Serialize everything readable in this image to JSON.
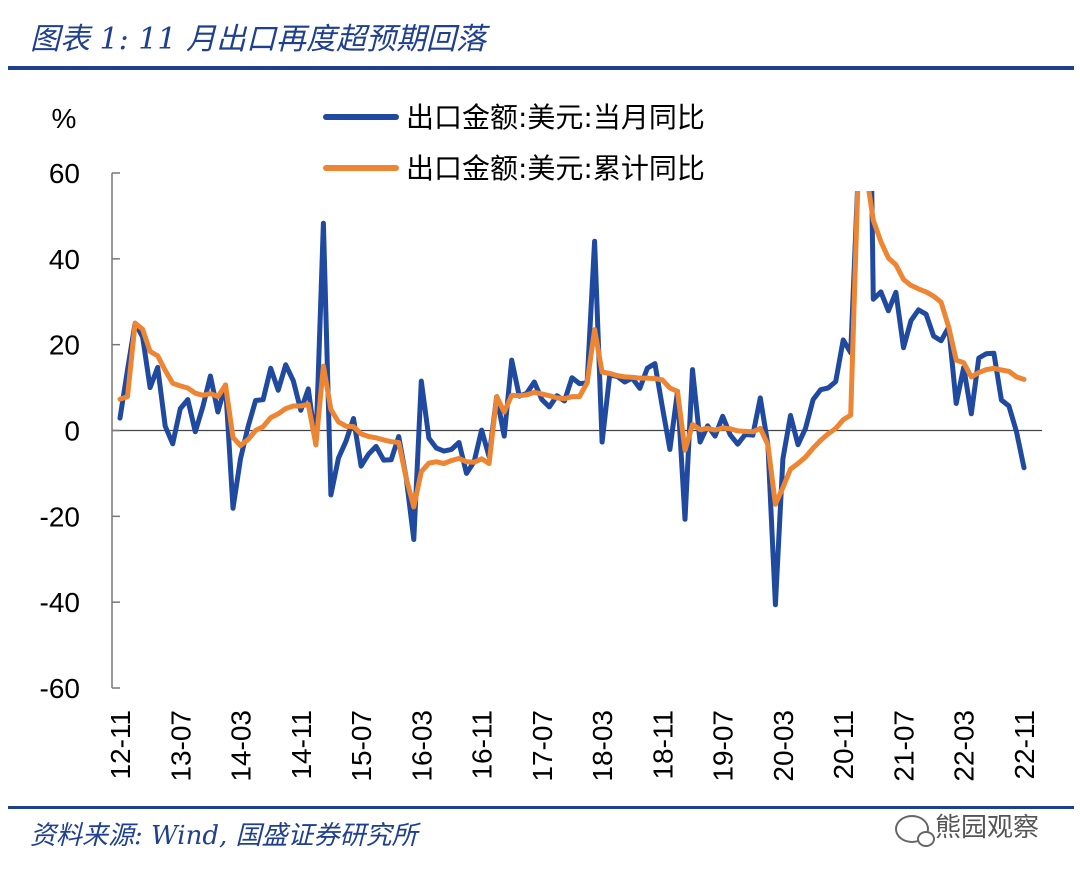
{
  "header": {
    "title": "图表 1:  11 月出口再度超预期回落"
  },
  "footer": {
    "source": "资料来源:  Wind,  国盛证券研究所",
    "watermark": "熊园观察"
  },
  "colors": {
    "monthly": "#1f4aa0",
    "cumulative": "#ee8533",
    "accent": "#1f3f8f"
  },
  "chart_data": {
    "type": "line",
    "yunit": "%",
    "ylim": [
      -60,
      60
    ],
    "yticks": [
      "60",
      "40",
      "20",
      "0",
      "-20",
      "-40",
      "-60"
    ],
    "xticks": [
      "12-11",
      "13-07",
      "14-03",
      "14-11",
      "15-07",
      "16-03",
      "16-11",
      "17-07",
      "18-03",
      "18-11",
      "19-07",
      "20-03",
      "20-11",
      "21-07",
      "22-03",
      "22-11"
    ],
    "legend_position": "top",
    "grid": false,
    "series": [
      {
        "name": "出口金额:美元:当月同比",
        "x": [
          "12-11",
          "12-12",
          "13-01",
          "13-02",
          "13-03",
          "13-04",
          "13-05",
          "13-06",
          "13-07",
          "13-08",
          "13-09",
          "13-10",
          "13-11",
          "13-12",
          "14-01",
          "14-02",
          "14-03",
          "14-04",
          "14-05",
          "14-06",
          "14-07",
          "14-08",
          "14-09",
          "14-10",
          "14-11",
          "14-12",
          "15-01",
          "15-02",
          "15-03",
          "15-04",
          "15-05",
          "15-06",
          "15-07",
          "15-08",
          "15-09",
          "15-10",
          "15-11",
          "15-12",
          "16-01",
          "16-02",
          "16-03",
          "16-04",
          "16-05",
          "16-06",
          "16-07",
          "16-08",
          "16-09",
          "16-10",
          "16-11",
          "16-12",
          "17-01",
          "17-02",
          "17-03",
          "17-04",
          "17-05",
          "17-06",
          "17-07",
          "17-08",
          "17-09",
          "17-10",
          "17-11",
          "17-12",
          "18-01",
          "18-02",
          "18-03",
          "18-04",
          "18-05",
          "18-06",
          "18-07",
          "18-08",
          "18-09",
          "18-10",
          "18-11",
          "18-12",
          "19-01",
          "19-02",
          "19-03",
          "19-04",
          "19-05",
          "19-06",
          "19-07",
          "19-08",
          "19-09",
          "19-10",
          "19-11",
          "19-12",
          "20-01",
          "20-02",
          "20-03",
          "20-04",
          "20-05",
          "20-06",
          "20-07",
          "20-08",
          "20-09",
          "20-10",
          "20-11",
          "20-12",
          "21-01",
          "21-02",
          "21-03",
          "21-04",
          "21-05",
          "21-06",
          "21-07",
          "21-08",
          "21-09",
          "21-10",
          "21-11",
          "21-12",
          "22-01",
          "22-02",
          "22-03",
          "22-04",
          "22-05",
          "22-06",
          "22-07",
          "22-08",
          "22-09",
          "22-10",
          "22-11"
        ],
        "values": [
          2.9,
          14.1,
          25.0,
          21.8,
          10.0,
          14.7,
          1.0,
          -3.1,
          5.1,
          7.2,
          -0.3,
          5.6,
          12.7,
          4.3,
          10.6,
          -18.1,
          -6.6,
          0.9,
          7.0,
          7.2,
          14.5,
          9.4,
          15.3,
          11.6,
          4.7,
          9.7,
          -3.3,
          48.3,
          -15.0,
          -6.4,
          -2.5,
          2.8,
          -8.3,
          -5.5,
          -3.7,
          -6.9,
          -6.8,
          -1.4,
          -11.2,
          -25.4,
          11.5,
          -1.8,
          -4.1,
          -4.8,
          -4.4,
          -2.8,
          -10.0,
          -7.3,
          0.1,
          -6.1,
          7.9,
          -1.3,
          16.4,
          8.0,
          8.7,
          11.3,
          7.2,
          5.5,
          8.1,
          6.9,
          12.3,
          10.9,
          11.1,
          44.1,
          -2.7,
          12.9,
          12.6,
          11.3,
          12.2,
          9.8,
          14.5,
          15.6,
          5.4,
          -4.4,
          9.1,
          -20.7,
          14.2,
          -2.7,
          1.1,
          -1.3,
          3.3,
          -1.0,
          -3.2,
          -0.9,
          -1.1,
          7.6,
          -3.3,
          -40.6,
          -6.6,
          3.5,
          -3.3,
          0.5,
          7.2,
          9.5,
          9.9,
          11.4,
          21.1,
          18.1,
          60.6,
          154.9,
          30.6,
          32.3,
          27.9,
          32.2,
          19.3,
          25.6,
          28.1,
          27.1,
          22.0,
          20.9,
          24.1,
          6.3,
          14.7,
          3.9,
          16.9,
          17.9,
          18.0,
          7.1,
          5.7,
          -0.3,
          -8.7
        ]
      },
      {
        "name": "出口金额:美元:累计同比",
        "x": [
          "12-11",
          "12-12",
          "13-01",
          "13-02",
          "13-03",
          "13-04",
          "13-05",
          "13-06",
          "13-07",
          "13-08",
          "13-09",
          "13-10",
          "13-11",
          "13-12",
          "14-01",
          "14-02",
          "14-03",
          "14-04",
          "14-05",
          "14-06",
          "14-07",
          "14-08",
          "14-09",
          "14-10",
          "14-11",
          "14-12",
          "15-01",
          "15-02",
          "15-03",
          "15-04",
          "15-05",
          "15-06",
          "15-07",
          "15-08",
          "15-09",
          "15-10",
          "15-11",
          "15-12",
          "16-01",
          "16-02",
          "16-03",
          "16-04",
          "16-05",
          "16-06",
          "16-07",
          "16-08",
          "16-09",
          "16-10",
          "16-11",
          "16-12",
          "17-01",
          "17-02",
          "17-03",
          "17-04",
          "17-05",
          "17-06",
          "17-07",
          "17-08",
          "17-09",
          "17-10",
          "17-11",
          "17-12",
          "18-01",
          "18-02",
          "18-03",
          "18-04",
          "18-05",
          "18-06",
          "18-07",
          "18-08",
          "18-09",
          "18-10",
          "18-11",
          "18-12",
          "19-01",
          "19-02",
          "19-03",
          "19-04",
          "19-05",
          "19-06",
          "19-07",
          "19-08",
          "19-09",
          "19-10",
          "19-11",
          "19-12",
          "20-01",
          "20-02",
          "20-03",
          "20-04",
          "20-05",
          "20-06",
          "20-07",
          "20-08",
          "20-09",
          "20-10",
          "20-11",
          "20-12",
          "21-01",
          "21-02",
          "21-03",
          "21-04",
          "21-05",
          "21-06",
          "21-07",
          "21-08",
          "21-09",
          "21-10",
          "21-11",
          "21-12",
          "22-01",
          "22-02",
          "22-03",
          "22-04",
          "22-05",
          "22-06",
          "22-07",
          "22-08",
          "22-09",
          "22-10",
          "22-11"
        ],
        "values": [
          7.3,
          7.9,
          25.0,
          23.6,
          18.4,
          17.4,
          14.0,
          11.0,
          10.4,
          9.9,
          8.7,
          8.2,
          8.6,
          7.9,
          10.6,
          -1.6,
          -3.5,
          -2.1,
          0.0,
          0.9,
          3.0,
          3.9,
          5.1,
          5.7,
          5.7,
          6.1,
          -3.3,
          15.0,
          4.9,
          2.0,
          1.0,
          0.9,
          -0.8,
          -1.4,
          -1.7,
          -2.2,
          -2.6,
          -2.8,
          -11.2,
          -17.8,
          -9.6,
          -7.6,
          -7.3,
          -7.7,
          -7.0,
          -6.5,
          -7.3,
          -7.4,
          -6.6,
          -7.7,
          7.9,
          4.3,
          8.2,
          8.1,
          8.3,
          8.9,
          8.5,
          8.1,
          7.6,
          7.4,
          7.9,
          7.9,
          11.1,
          23.5,
          13.6,
          13.3,
          12.8,
          12.5,
          12.4,
          12.2,
          12.2,
          12.1,
          11.8,
          9.9,
          9.1,
          -4.6,
          1.4,
          0.2,
          0.5,
          0.1,
          0.6,
          0.4,
          -0.1,
          -0.2,
          -0.3,
          0.5,
          -3.3,
          -17.2,
          -13.3,
          -9.0,
          -7.7,
          -6.2,
          -4.1,
          -2.3,
          -0.8,
          0.5,
          2.5,
          3.6,
          60.6,
          60.6,
          49.0,
          44.0,
          40.2,
          38.6,
          35.2,
          33.8,
          33.0,
          32.3,
          31.3,
          29.9,
          24.1,
          16.4,
          15.8,
          12.5,
          13.5,
          14.2,
          14.5,
          14.1,
          13.8,
          12.5,
          11.9
        ]
      }
    ]
  }
}
